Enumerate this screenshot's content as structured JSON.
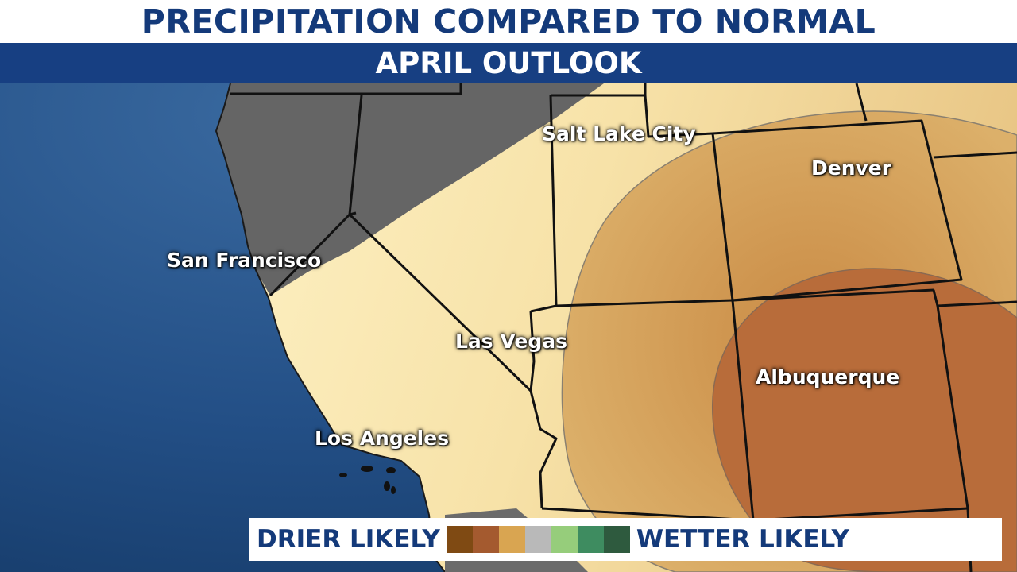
{
  "header": {
    "title": "PRECIPITATION COMPARED TO NORMAL",
    "subtitle": "APRIL OUTLOOK"
  },
  "cities": [
    {
      "name": "Salt Lake City"
    },
    {
      "name": "Denver"
    },
    {
      "name": "San Francisco"
    },
    {
      "name": "Las Vegas"
    },
    {
      "name": "Albuquerque"
    },
    {
      "name": "Los Angeles"
    }
  ],
  "legend": {
    "left_label": "DRIER LIKELY",
    "right_label": "WETTER LIKELY",
    "colors": [
      "#7f4a13",
      "#a45a2f",
      "#d9a551",
      "#b9b9b9",
      "#96cd7b",
      "#3e8c60",
      "#2e5a3e"
    ]
  },
  "colors": {
    "ocean": "#234f86",
    "equal_chances": "#646464",
    "slightly_drier": "#f4dca0",
    "drier": "#d5a558",
    "much_drier": "#b8693a",
    "brand_blue": "#173f82"
  }
}
